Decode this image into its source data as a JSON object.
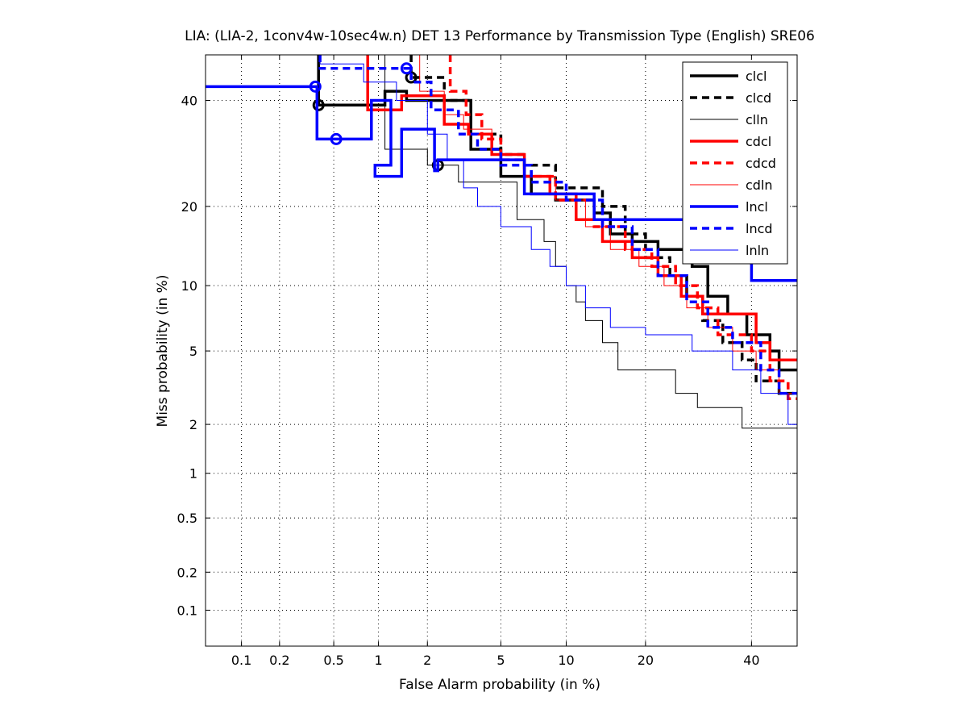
{
  "chart_data": {
    "type": "line",
    "title": "LIA: (LIA-2, 1conv4w-10sec4w.n) DET 13 Performance by Transmission Type (English) SRE06",
    "xlabel": "False Alarm probability (in %)",
    "ylabel": "Miss probability (in %)",
    "scale": "normal-deviate (probit) on both axes",
    "xlim": [
      0.05,
      50
    ],
    "ylim": [
      0.05,
      50
    ],
    "x_ticks": [
      0.1,
      0.2,
      0.5,
      1,
      2,
      5,
      10,
      20,
      40
    ],
    "x_tick_labels": [
      "0.1",
      "0.2",
      "0.5",
      "1",
      "2",
      "5",
      "10",
      "20",
      "40"
    ],
    "y_ticks": [
      0.1,
      0.2,
      0.5,
      1,
      2,
      5,
      10,
      20,
      40
    ],
    "y_tick_labels": [
      "0.1",
      "0.2",
      "0.5",
      "1",
      "2",
      "5",
      "10",
      "20",
      "40"
    ],
    "grid": true,
    "legend_position": "top-right",
    "series": [
      {
        "name": "clcl",
        "color": "#000000",
        "style": "solid",
        "width": 3.5,
        "points": [
          [
            0.39,
            50
          ],
          [
            0.39,
            39
          ],
          [
            1.1,
            39
          ],
          [
            1.1,
            42
          ],
          [
            1.5,
            42
          ],
          [
            1.5,
            40
          ],
          [
            3.5,
            40
          ],
          [
            3.5,
            30
          ],
          [
            5,
            30
          ],
          [
            5,
            25
          ],
          [
            7,
            25
          ],
          [
            7,
            22
          ],
          [
            9,
            22
          ],
          [
            9,
            21
          ],
          [
            13,
            21
          ],
          [
            13,
            19
          ],
          [
            15,
            19
          ],
          [
            15,
            16
          ],
          [
            18,
            16
          ],
          [
            18,
            15
          ],
          [
            22,
            15
          ],
          [
            22,
            14
          ],
          [
            28,
            14
          ],
          [
            28,
            12
          ],
          [
            31,
            12
          ],
          [
            31,
            9
          ],
          [
            35,
            9
          ],
          [
            35,
            7.5
          ],
          [
            39,
            7.5
          ],
          [
            39,
            6
          ],
          [
            44,
            6
          ],
          [
            44,
            5
          ],
          [
            46,
            5
          ],
          [
            46,
            4
          ],
          [
            50,
            4
          ]
        ],
        "markers": [
          [
            0.39,
            39
          ],
          [
            1.6,
            45
          ],
          [
            2.3,
            27
          ]
        ]
      },
      {
        "name": "clcd",
        "color": "#000000",
        "style": "dashed",
        "width": 3.5,
        "points": [
          [
            1.6,
            50
          ],
          [
            1.6,
            45
          ],
          [
            2.5,
            45
          ],
          [
            2.5,
            40
          ],
          [
            3.5,
            40
          ],
          [
            3.5,
            33
          ],
          [
            5,
            33
          ],
          [
            5,
            29
          ],
          [
            6.5,
            29
          ],
          [
            6.5,
            27
          ],
          [
            9,
            27
          ],
          [
            9,
            23
          ],
          [
            14,
            23
          ],
          [
            14,
            20
          ],
          [
            17,
            20
          ],
          [
            17,
            16
          ],
          [
            20,
            16
          ],
          [
            20,
            13
          ],
          [
            24,
            13
          ],
          [
            24,
            11
          ],
          [
            27,
            11
          ],
          [
            27,
            9
          ],
          [
            30,
            9
          ],
          [
            30,
            7
          ],
          [
            34,
            7
          ],
          [
            34,
            5.5
          ],
          [
            38,
            5.5
          ],
          [
            38,
            4.5
          ],
          [
            41,
            4.5
          ],
          [
            41,
            3.5
          ],
          [
            46,
            3.5
          ],
          [
            46,
            3
          ],
          [
            50,
            3
          ]
        ]
      },
      {
        "name": "clln",
        "color": "#000000",
        "style": "solid",
        "width": 1,
        "points": [
          [
            1.1,
            50
          ],
          [
            1.1,
            30
          ],
          [
            2,
            30
          ],
          [
            2,
            27
          ],
          [
            3,
            27
          ],
          [
            3,
            24
          ],
          [
            6,
            24
          ],
          [
            6,
            18
          ],
          [
            8,
            18
          ],
          [
            8,
            15
          ],
          [
            9,
            15
          ],
          [
            9,
            12
          ],
          [
            10,
            12
          ],
          [
            10,
            10
          ],
          [
            11,
            10
          ],
          [
            11,
            8.5
          ],
          [
            12,
            8.5
          ],
          [
            12,
            7
          ],
          [
            14,
            7
          ],
          [
            14,
            5.5
          ],
          [
            16,
            5.5
          ],
          [
            16,
            4
          ],
          [
            25,
            4
          ],
          [
            25,
            3
          ],
          [
            29,
            3
          ],
          [
            29,
            2.5
          ],
          [
            38,
            2.5
          ],
          [
            38,
            1.9
          ],
          [
            50,
            1.9
          ]
        ]
      },
      {
        "name": "cdcl",
        "color": "#ff0000",
        "style": "solid",
        "width": 3.5,
        "points": [
          [
            0.85,
            50
          ],
          [
            0.85,
            38
          ],
          [
            1.4,
            38
          ],
          [
            1.4,
            41
          ],
          [
            2.5,
            41
          ],
          [
            2.5,
            35
          ],
          [
            3.4,
            35
          ],
          [
            3.4,
            33
          ],
          [
            4.5,
            33
          ],
          [
            4.5,
            29
          ],
          [
            6.5,
            29
          ],
          [
            6.5,
            25
          ],
          [
            8.5,
            25
          ],
          [
            8.5,
            22
          ],
          [
            11,
            22
          ],
          [
            11,
            18
          ],
          [
            14,
            18
          ],
          [
            14,
            15
          ],
          [
            18,
            15
          ],
          [
            18,
            13
          ],
          [
            22,
            13
          ],
          [
            22,
            11
          ],
          [
            26,
            11
          ],
          [
            26,
            9
          ],
          [
            30,
            9
          ],
          [
            30,
            7.5
          ],
          [
            41,
            7.5
          ],
          [
            41,
            5.5
          ],
          [
            44,
            5.5
          ],
          [
            44,
            4.5
          ],
          [
            50,
            4.5
          ]
        ]
      },
      {
        "name": "cdcd",
        "color": "#ff0000",
        "style": "dashed",
        "width": 3.5,
        "points": [
          [
            2.7,
            50
          ],
          [
            2.7,
            42
          ],
          [
            3.3,
            42
          ],
          [
            3.3,
            37
          ],
          [
            4,
            37
          ],
          [
            4,
            32
          ],
          [
            5,
            32
          ],
          [
            5,
            28
          ],
          [
            6.5,
            28
          ],
          [
            6.5,
            25
          ],
          [
            9,
            25
          ],
          [
            9,
            21
          ],
          [
            13,
            21
          ],
          [
            13,
            17
          ],
          [
            17,
            17
          ],
          [
            17,
            14
          ],
          [
            21,
            14
          ],
          [
            21,
            12
          ],
          [
            25,
            12
          ],
          [
            25,
            10
          ],
          [
            29,
            10
          ],
          [
            29,
            8
          ],
          [
            33,
            8
          ],
          [
            33,
            6
          ],
          [
            40,
            6
          ],
          [
            40,
            5
          ],
          [
            44,
            5
          ],
          [
            44,
            3.5
          ],
          [
            48,
            3.5
          ],
          [
            48,
            2.8
          ],
          [
            50,
            2.8
          ]
        ]
      },
      {
        "name": "cdln",
        "color": "#ff0000",
        "style": "solid",
        "width": 1,
        "points": [
          [
            1.8,
            50
          ],
          [
            1.8,
            42
          ],
          [
            2.5,
            42
          ],
          [
            2.5,
            37
          ],
          [
            3.2,
            37
          ],
          [
            3.2,
            34
          ],
          [
            4.5,
            34
          ],
          [
            4.5,
            29
          ],
          [
            6.5,
            29
          ],
          [
            6.5,
            25
          ],
          [
            9,
            25
          ],
          [
            9,
            21
          ],
          [
            12,
            21
          ],
          [
            12,
            17
          ],
          [
            15,
            17
          ],
          [
            15,
            14
          ],
          [
            19,
            14
          ],
          [
            19,
            12
          ],
          [
            23,
            12
          ],
          [
            23,
            10
          ],
          [
            27,
            10
          ],
          [
            27,
            8
          ],
          [
            31,
            8
          ],
          [
            31,
            6.5
          ],
          [
            36,
            6.5
          ],
          [
            36,
            5
          ],
          [
            41,
            5
          ],
          [
            41,
            4
          ],
          [
            46,
            4
          ],
          [
            46,
            3
          ],
          [
            50,
            3
          ]
        ]
      },
      {
        "name": "lncl",
        "color": "#0000ff",
        "style": "solid",
        "width": 3.5,
        "points": [
          [
            0.05,
            43
          ],
          [
            0.38,
            43
          ],
          [
            0.38,
            32
          ],
          [
            0.9,
            32
          ],
          [
            0.9,
            40
          ],
          [
            1.2,
            40
          ],
          [
            1.2,
            27
          ],
          [
            0.95,
            27
          ],
          [
            0.95,
            25
          ],
          [
            1.4,
            25
          ],
          [
            1.4,
            34
          ],
          [
            2.2,
            34
          ],
          [
            2.2,
            26
          ],
          [
            2.3,
            26
          ],
          [
            2.3,
            28
          ],
          [
            6.5,
            28
          ],
          [
            6.5,
            22
          ],
          [
            13,
            22
          ],
          [
            13,
            18
          ],
          [
            40,
            18
          ],
          [
            40,
            10.5
          ],
          [
            50,
            10.5
          ]
        ],
        "markers": [
          [
            0.37,
            43
          ],
          [
            0.52,
            32
          ],
          [
            1.5,
            47
          ]
        ]
      },
      {
        "name": "lncd",
        "color": "#0000ff",
        "style": "dashed",
        "width": 3.5,
        "points": [
          [
            0.4,
            50
          ],
          [
            0.4,
            47
          ],
          [
            1.6,
            47
          ],
          [
            1.6,
            44
          ],
          [
            2.1,
            44
          ],
          [
            2.1,
            38
          ],
          [
            3,
            38
          ],
          [
            3,
            33
          ],
          [
            3.8,
            33
          ],
          [
            3.8,
            30
          ],
          [
            5,
            30
          ],
          [
            5,
            27
          ],
          [
            7,
            27
          ],
          [
            7,
            24
          ],
          [
            10,
            24
          ],
          [
            10,
            21
          ],
          [
            14,
            21
          ],
          [
            14,
            17
          ],
          [
            18,
            17
          ],
          [
            18,
            14
          ],
          [
            22,
            14
          ],
          [
            22,
            11
          ],
          [
            27,
            11
          ],
          [
            27,
            8.5
          ],
          [
            31,
            8.5
          ],
          [
            31,
            6.5
          ],
          [
            36,
            6.5
          ],
          [
            36,
            5.5
          ],
          [
            42,
            5.5
          ],
          [
            42,
            4
          ],
          [
            46,
            4
          ],
          [
            46,
            3
          ],
          [
            50,
            3
          ]
        ]
      },
      {
        "name": "lnln",
        "color": "#0000ff",
        "style": "solid",
        "width": 1,
        "points": [
          [
            0.4,
            50
          ],
          [
            0.4,
            48
          ],
          [
            0.8,
            48
          ],
          [
            0.8,
            44
          ],
          [
            1.3,
            44
          ],
          [
            1.3,
            40
          ],
          [
            2,
            40
          ],
          [
            2,
            33
          ],
          [
            2.6,
            33
          ],
          [
            2.6,
            28
          ],
          [
            3.2,
            28
          ],
          [
            3.2,
            23
          ],
          [
            3.8,
            23
          ],
          [
            3.8,
            20
          ],
          [
            5,
            20
          ],
          [
            5,
            17
          ],
          [
            7,
            17
          ],
          [
            7,
            14
          ],
          [
            8.5,
            14
          ],
          [
            8.5,
            12
          ],
          [
            10,
            12
          ],
          [
            10,
            10
          ],
          [
            12,
            10
          ],
          [
            12,
            8
          ],
          [
            15,
            8
          ],
          [
            15,
            6.5
          ],
          [
            20,
            6.5
          ],
          [
            20,
            6
          ],
          [
            28,
            6
          ],
          [
            28,
            5
          ],
          [
            36,
            5
          ],
          [
            36,
            4
          ],
          [
            42,
            4
          ],
          [
            42,
            3
          ],
          [
            48,
            3
          ],
          [
            48,
            2
          ],
          [
            50,
            2
          ]
        ]
      }
    ]
  }
}
